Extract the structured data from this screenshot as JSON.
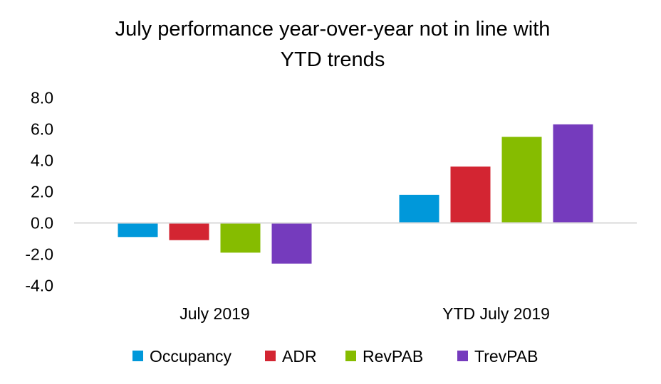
{
  "chart_data": {
    "type": "bar",
    "title": [
      "July performance year-over-year not in line with",
      "YTD trends"
    ],
    "xlabel": "",
    "ylabel": "",
    "categories": [
      "July 2019",
      "YTD July 2019"
    ],
    "series": [
      {
        "name": "Occupancy",
        "color": "#0098DA",
        "values": [
          -0.9,
          1.8
        ]
      },
      {
        "name": "ADR",
        "color": "#D32532",
        "values": [
          -1.1,
          3.6
        ]
      },
      {
        "name": "RevPAB",
        "color": "#86BC00",
        "values": [
          -1.9,
          5.5
        ]
      },
      {
        "name": "TrevPAB",
        "color": "#753BBD",
        "values": [
          -2.6,
          6.3
        ]
      }
    ],
    "ylim": [
      -4.0,
      8.0
    ],
    "yticks": [
      "8.0",
      "6.0",
      "4.0",
      "2.0",
      "0.0",
      "-2.0",
      "-4.0"
    ],
    "ytick_values": [
      8,
      6,
      4,
      2,
      0,
      -2,
      -4
    ],
    "grid": false,
    "legend_position": "bottom",
    "zero_line_color": "#D9D9D9"
  }
}
